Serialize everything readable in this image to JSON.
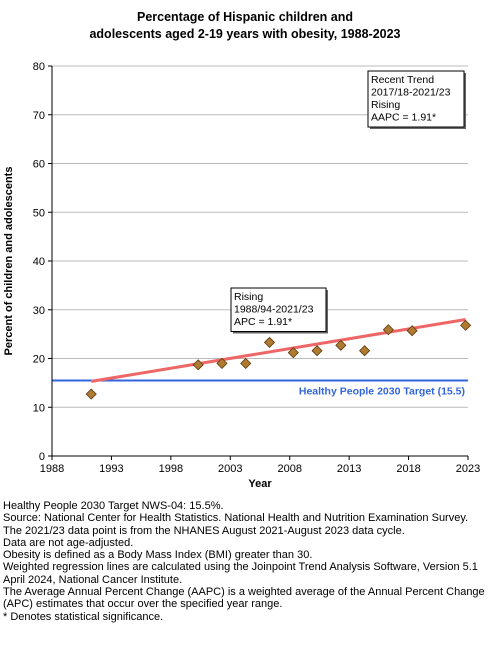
{
  "chart_data": {
    "type": "scatter",
    "title": [
      "Percentage of Hispanic children and",
      "adolescents aged 2-19 years with obesity, 1988-2023"
    ],
    "xlabel": "Year",
    "ylabel": "Percent of children and adolescents",
    "xlim": [
      1988,
      2023
    ],
    "ylim": [
      0,
      80
    ],
    "xticks": [
      "1988",
      "1993",
      "1998",
      "2003",
      "2008",
      "2013",
      "2018",
      "2023"
    ],
    "yticks": [
      "0",
      "10",
      "20",
      "30",
      "40",
      "50",
      "60",
      "70",
      "80"
    ],
    "grid": "horizontal",
    "points": [
      {
        "x": 1991.3,
        "y": 12.7
      },
      {
        "x": 2000.3,
        "y": 18.7
      },
      {
        "x": 2002.3,
        "y": 19.0
      },
      {
        "x": 2004.3,
        "y": 19.0
      },
      {
        "x": 2006.3,
        "y": 23.3
      },
      {
        "x": 2008.3,
        "y": 21.2
      },
      {
        "x": 2010.3,
        "y": 21.6
      },
      {
        "x": 2012.3,
        "y": 22.7
      },
      {
        "x": 2014.3,
        "y": 21.6
      },
      {
        "x": 2016.3,
        "y": 25.9
      },
      {
        "x": 2018.3,
        "y": 25.7
      },
      {
        "x": 2022.8,
        "y": 26.8
      }
    ],
    "trend_line": {
      "x": [
        1991.3,
        2022.8
      ],
      "y": [
        15.3,
        28.0
      ]
    },
    "reference_line": {
      "y": 15.5,
      "label": "Healthy People 2030 Target (15.5)"
    },
    "annotations": [
      {
        "lines": [
          "Recent Trend",
          "2017/18-2021/23",
          "Rising",
          "AAPC =  1.91*"
        ]
      },
      {
        "lines": [
          "Rising",
          "1988/94-2021/23",
          "APC =  1.91*"
        ]
      }
    ]
  },
  "notes": [
    "Healthy People 2030 Target NWS-04: 15.5%.",
    "Source: National Center for Health Statistics. National Health and Nutrition Examination Survey.",
    "The 2021/23 data point is from the NHANES August 2021-August 2023 data cycle.",
    "Data are not age-adjusted.",
    "Obesity is defined as a Body Mass Index (BMI) greater than 30.",
    "Weighted regression lines are calculated using the Joinpoint Trend Analysis Software, Version 5.1 April 2024, National Cancer Institute.",
    "The Average Annual Percent Change (AAPC) is a weighted average of the Annual Percent Change (APC) estimates that occur over the specified year range.",
    "* Denotes statistical significance."
  ],
  "colors": {
    "trend": "#ee6666",
    "target": "#3366dd",
    "marker_fill": "#b07a30",
    "marker_stroke": "#5a3a10",
    "grid": "#bbbbbb"
  }
}
